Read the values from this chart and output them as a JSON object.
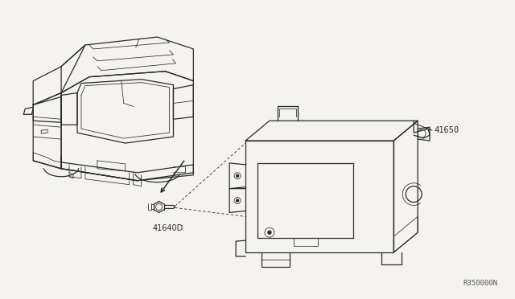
{
  "background_color": "#f5f3ef",
  "line_color": "#2a2a2a",
  "label_41650": "41650",
  "label_41640D": "41640D",
  "label_ref": "R350000N",
  "fig_width": 6.4,
  "fig_height": 3.72,
  "dpi": 100,
  "car_scale": 1.0,
  "unit_scale": 1.0
}
